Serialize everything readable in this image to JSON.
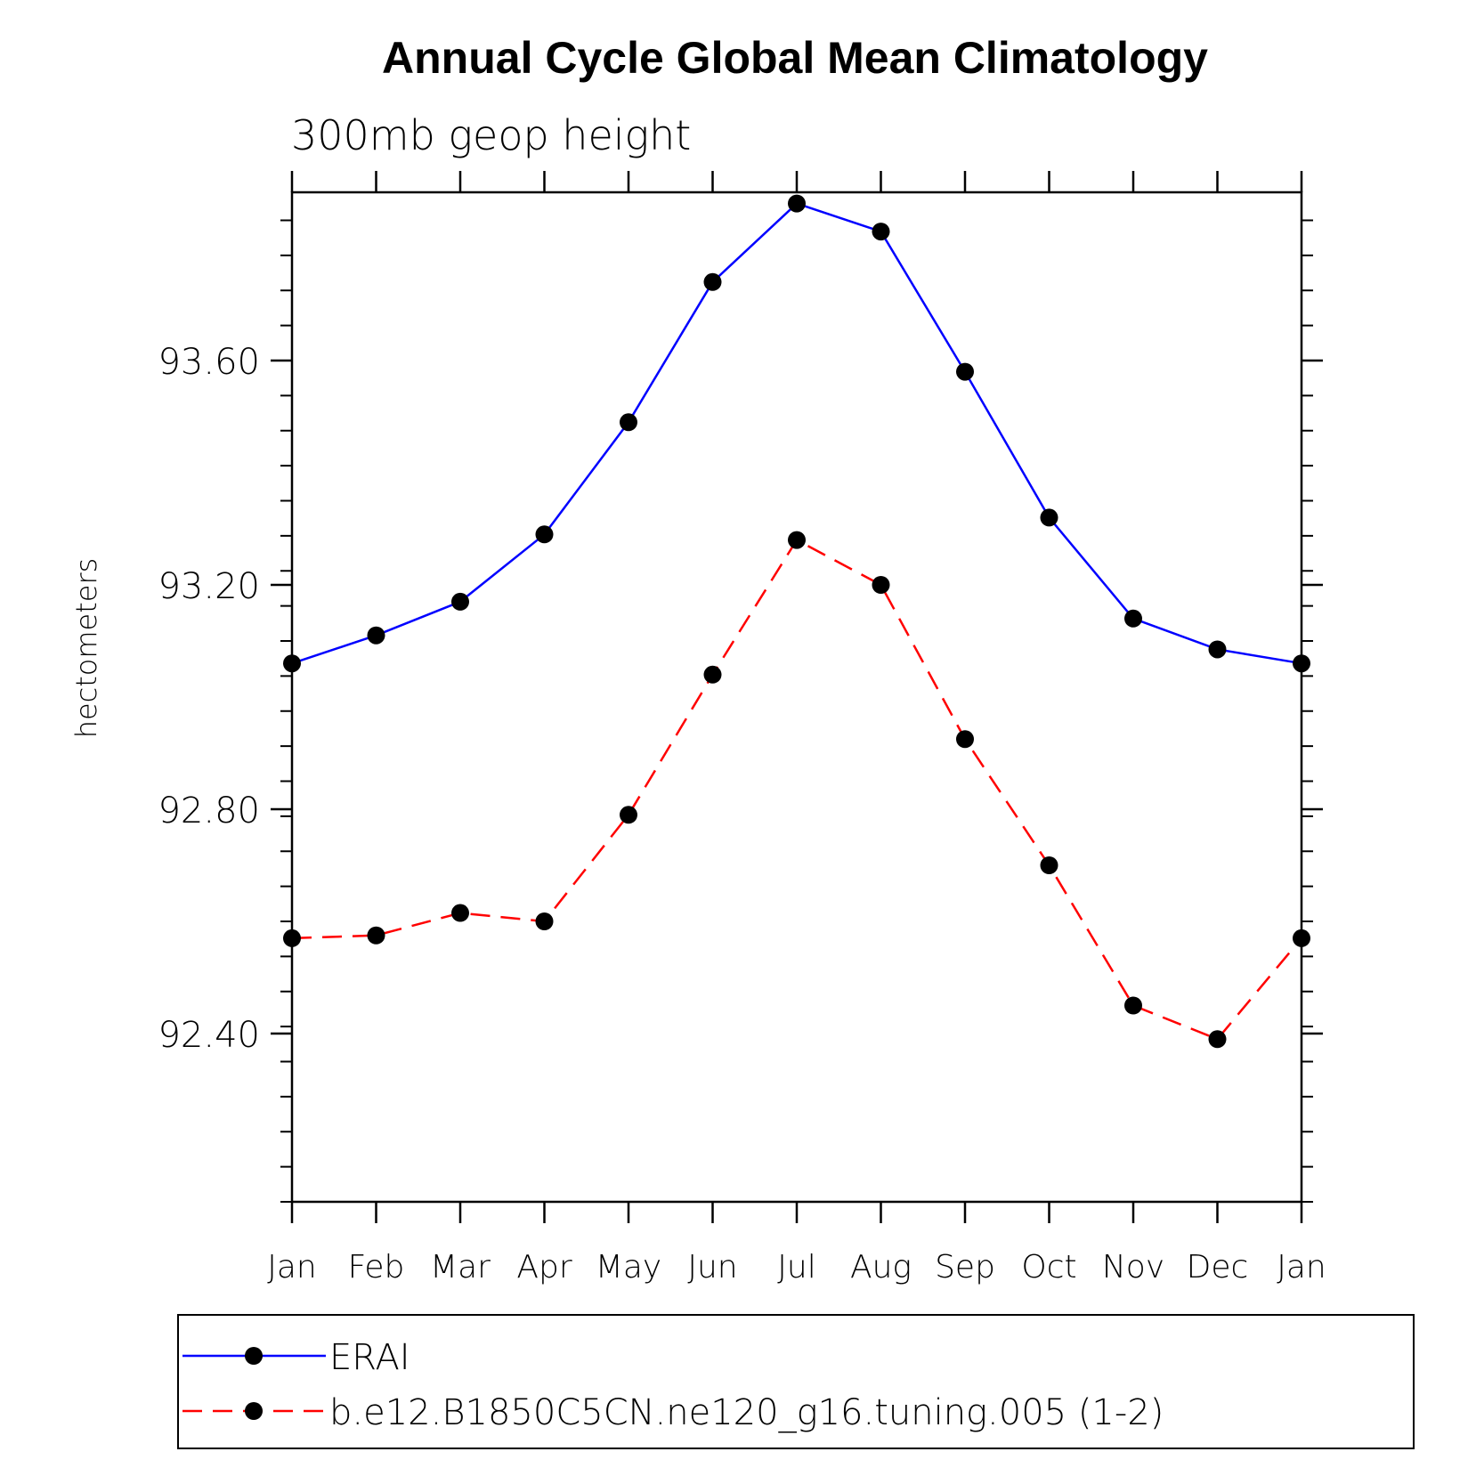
{
  "chart_data": {
    "type": "line",
    "title": "Annual Cycle Global Mean Climatology",
    "subtitle": "300mb geop height",
    "xlabel": "",
    "ylabel": "hectometers",
    "categories": [
      "Jan",
      "Feb",
      "Mar",
      "Apr",
      "May",
      "Jun",
      "Jul",
      "Aug",
      "Sep",
      "Oct",
      "Nov",
      "Dec",
      "Jan"
    ],
    "ylim": [
      92.1,
      93.9
    ],
    "yticks": [
      92.4,
      92.8,
      93.2,
      93.6
    ],
    "ytick_labels": [
      "92.40",
      "92.80",
      "93.20",
      "93.60"
    ],
    "grid": false,
    "legend_position": "bottom",
    "series": [
      {
        "name": "ERAI",
        "color": "#0000ff",
        "dash": "solid",
        "marker": "circle",
        "values": [
          93.06,
          93.11,
          93.17,
          93.29,
          93.49,
          93.74,
          93.88,
          93.83,
          93.58,
          93.32,
          93.14,
          93.085,
          93.06
        ]
      },
      {
        "name": "b.e12.B1850C5CN.ne120_g16.tuning.005 (1-2)",
        "color": "#ff0000",
        "dash": "dashed",
        "marker": "circle",
        "values": [
          92.57,
          92.575,
          92.615,
          92.6,
          92.79,
          93.04,
          93.28,
          93.2,
          92.925,
          92.7,
          92.45,
          92.39,
          92.57
        ]
      }
    ]
  }
}
